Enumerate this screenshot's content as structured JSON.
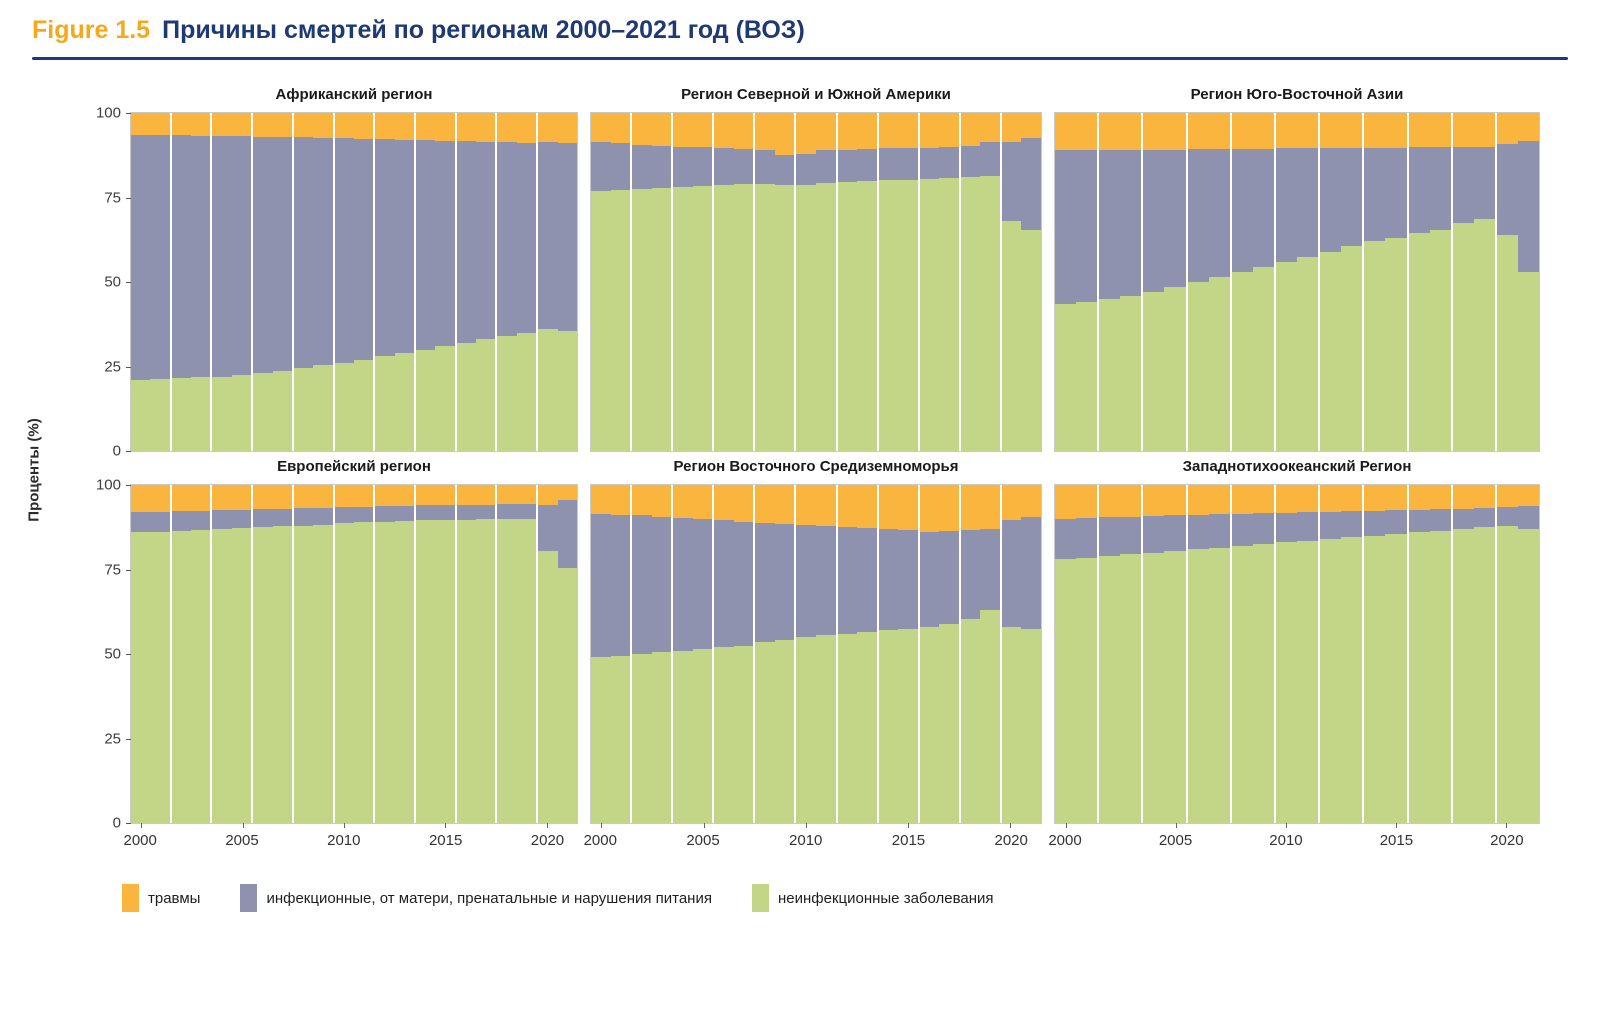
{
  "header": {
    "figure_label": "Figure 1.5",
    "title": "Причины смертей по регионам 2000–2021 год (ВОЗ)"
  },
  "y_axis": {
    "title": "Проценты (%)",
    "ticks": [
      "100",
      "75",
      "50",
      "25",
      "0"
    ]
  },
  "x_axis": {
    "ticks": [
      "2000",
      "2005",
      "2010",
      "2015",
      "2020"
    ]
  },
  "colors": {
    "injuries": "#f9b53d",
    "infectious": "#8e92ae",
    "ncd": "#c3d687",
    "accent_navy": "#1f3a72",
    "accent_orange": "#f5a81c",
    "panel_border": "#c9c9c9"
  },
  "legend": [
    {
      "label": "травмы",
      "color": "#f9b53d"
    },
    {
      "label": "инфекционные, от матери, пренатальные и нарушения питания",
      "color": "#8e92ae"
    },
    {
      "label": "неинфекционные заболевания",
      "color": "#c3d687"
    }
  ],
  "chart_data": {
    "type": "bar",
    "stacked": true,
    "unit": "percent",
    "ylim": [
      0,
      100
    ],
    "ylabel": "Проценты (%)",
    "legend_position": "bottom",
    "grid": false,
    "years": [
      2000,
      2001,
      2002,
      2003,
      2004,
      2005,
      2006,
      2007,
      2008,
      2009,
      2010,
      2011,
      2012,
      2013,
      2014,
      2015,
      2016,
      2017,
      2018,
      2019,
      2020,
      2021
    ],
    "series_names": {
      "injuries": "травмы",
      "infectious": "инфекционные, от матери, пренатальные и нарушения питания",
      "ncd": "неинфекционные заболевания"
    },
    "panels": [
      {
        "title": "Африканский регион",
        "ncd": [
          21,
          21.2,
          21.5,
          21.8,
          22,
          22.5,
          23,
          23.8,
          24.5,
          25.3,
          26,
          27,
          28,
          29,
          30,
          31,
          32,
          33,
          34,
          35,
          36,
          35.5
        ],
        "infectious": [
          72.5,
          72.3,
          71.9,
          71.5,
          71.2,
          70.6,
          70,
          69.1,
          68.3,
          67.3,
          66.5,
          65.4,
          64.2,
          63.1,
          62,
          60.8,
          59.7,
          58.5,
          57.4,
          56.2,
          55.3,
          55.5
        ],
        "injuries": [
          6.5,
          6.5,
          6.6,
          6.7,
          6.8,
          6.9,
          7,
          7.1,
          7.2,
          7.4,
          7.5,
          7.6,
          7.8,
          7.9,
          8,
          8.2,
          8.3,
          8.5,
          8.6,
          8.8,
          8.7,
          9
        ]
      },
      {
        "title": "Регион Северной и Южной Америки",
        "ncd": [
          77,
          77.2,
          77.5,
          77.8,
          78,
          78.3,
          78.6,
          78.9,
          79.1,
          78.7,
          78.8,
          79.4,
          79.7,
          79.9,
          80.1,
          80.3,
          80.5,
          80.8,
          81,
          81.5,
          68,
          65.5
        ],
        "infectious": [
          14.5,
          13.8,
          13.1,
          12.4,
          12,
          11.5,
          11,
          10.5,
          10.1,
          8.9,
          9.1,
          9.6,
          9.5,
          9.4,
          9.4,
          9.2,
          9.2,
          9.2,
          9.3,
          10,
          23.5,
          27
        ],
        "injuries": [
          8.5,
          9,
          9.4,
          9.8,
          10,
          10.2,
          10.4,
          10.6,
          10.8,
          12.4,
          12.1,
          11,
          10.8,
          10.7,
          10.5,
          10.5,
          10.3,
          10,
          9.7,
          8.5,
          8.5,
          7.5
        ]
      },
      {
        "title": "Регион Юго-Восточной Азии",
        "ncd": [
          43.5,
          44,
          45,
          45.8,
          47,
          48.5,
          50,
          51.5,
          53,
          54.5,
          56,
          57.5,
          59,
          60.5,
          62,
          63,
          64.5,
          65.5,
          67.5,
          68.5,
          64,
          53
        ],
        "infectious": [
          45.5,
          45,
          44.1,
          43.3,
          42.2,
          40.7,
          39.3,
          37.8,
          36.4,
          34.9,
          33.5,
          32,
          30.6,
          29.1,
          27.7,
          26.7,
          25.3,
          24.3,
          22.4,
          21.5,
          26.8,
          38.6
        ],
        "injuries": [
          11,
          11,
          10.9,
          10.9,
          10.8,
          10.8,
          10.7,
          10.7,
          10.6,
          10.6,
          10.5,
          10.5,
          10.4,
          10.4,
          10.3,
          10.3,
          10.2,
          10.2,
          10.1,
          10,
          9.2,
          8.4
        ]
      },
      {
        "title": "Европейский регион",
        "ncd": [
          86,
          86.2,
          86.5,
          86.8,
          87,
          87.2,
          87.5,
          87.8,
          88,
          88.3,
          88.8,
          89,
          89.2,
          89.3,
          89.5,
          89.5,
          89.7,
          89.8,
          90,
          90,
          80.5,
          75.5
        ],
        "infectious": [
          6,
          5.9,
          5.8,
          5.6,
          5.5,
          5.5,
          5.3,
          5.2,
          5.2,
          5,
          4.7,
          4.6,
          4.6,
          4.5,
          4.5,
          4.5,
          4.4,
          4.4,
          4.3,
          4.5,
          13.5,
          20
        ],
        "injuries": [
          8,
          7.9,
          7.7,
          7.6,
          7.5,
          7.3,
          7.2,
          7,
          6.8,
          6.7,
          6.5,
          6.4,
          6.2,
          6.2,
          6,
          6,
          5.9,
          5.8,
          5.7,
          5.5,
          6,
          4.5
        ]
      },
      {
        "title": "Регион Восточного Средиземноморья",
        "ncd": [
          49,
          49.5,
          50,
          50.5,
          51,
          51.5,
          52,
          52.5,
          53.5,
          54,
          55,
          55.5,
          56,
          56.5,
          57,
          57.5,
          58,
          59,
          60.5,
          63,
          58,
          57.5
        ],
        "infectious": [
          42.5,
          41.7,
          41,
          40,
          39.2,
          38.5,
          37.5,
          36.5,
          35.3,
          34.5,
          33.2,
          32.5,
          31.5,
          30.7,
          30,
          29.1,
          28.2,
          27.4,
          26.3,
          24,
          31.5,
          33
        ],
        "injuries": [
          8.5,
          8.8,
          9,
          9.5,
          9.8,
          10,
          10.5,
          11,
          11.2,
          11.5,
          11.8,
          12,
          12.5,
          12.8,
          13,
          13.4,
          13.8,
          13.6,
          13.2,
          13,
          10.5,
          9.5
        ]
      },
      {
        "title": "Западнотихоокеанский Регион",
        "ncd": [
          78,
          78.5,
          79,
          79.5,
          80,
          80.5,
          81,
          81.5,
          82,
          82.5,
          83,
          83.5,
          84,
          84.5,
          85,
          85.5,
          86,
          86.5,
          87,
          87.5,
          88,
          87
        ],
        "infectious": [
          12,
          11.7,
          11.4,
          11.1,
          10.8,
          10.5,
          10.2,
          9.9,
          9.5,
          9.2,
          8.8,
          8.5,
          8.1,
          7.8,
          7.4,
          7,
          6.6,
          6.3,
          6,
          5.7,
          5.5,
          6.8
        ],
        "injuries": [
          10,
          9.8,
          9.6,
          9.4,
          9.2,
          9,
          8.8,
          8.6,
          8.5,
          8.3,
          8.2,
          8,
          7.9,
          7.7,
          7.6,
          7.5,
          7.4,
          7.2,
          7,
          6.8,
          6.5,
          6.2
        ]
      }
    ]
  }
}
